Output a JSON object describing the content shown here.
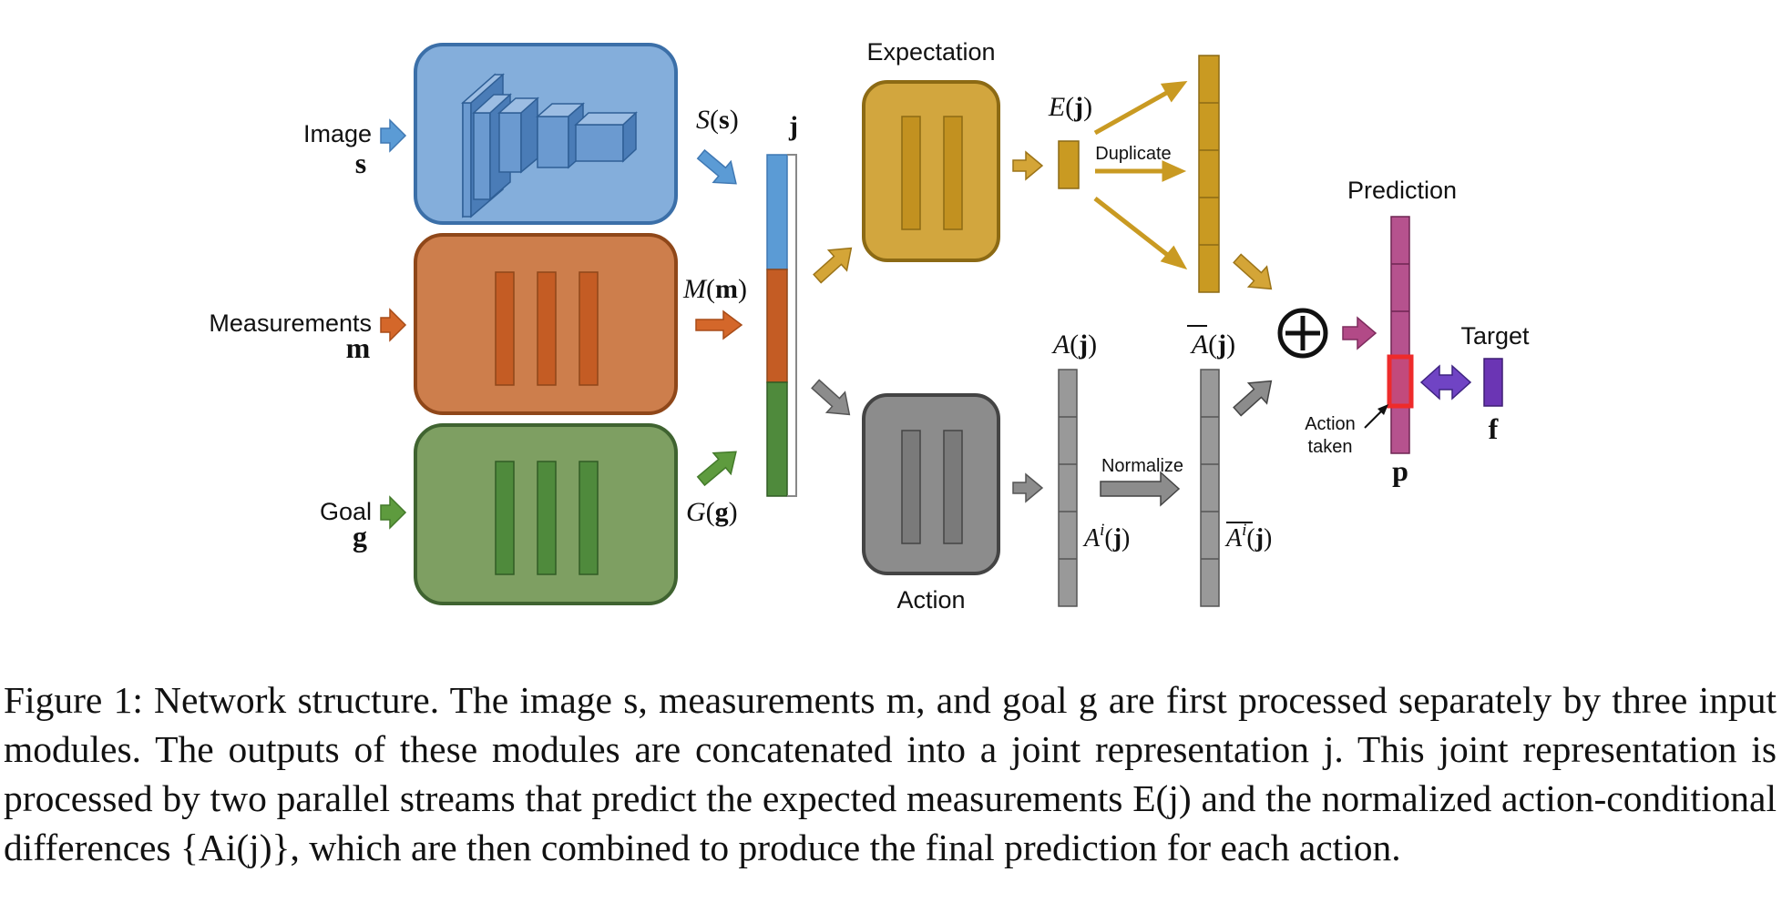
{
  "inputs": {
    "image": {
      "label": "Image",
      "symbol": "s"
    },
    "measurements": {
      "label": "Measurements",
      "symbol": "m"
    },
    "goal": {
      "label": "Goal",
      "symbol": "g"
    }
  },
  "module_outputs": {
    "image": {
      "func": "S",
      "arg": "s"
    },
    "measurements": {
      "func": "M",
      "arg": "m"
    },
    "goal": {
      "func": "G",
      "arg": "g"
    }
  },
  "joint": {
    "symbol": "j"
  },
  "streams": {
    "expectation": {
      "title": "Expectation",
      "output": "E(j)",
      "duplicate_label": "Duplicate"
    },
    "action": {
      "title": "Action",
      "output": "A(j)",
      "element": "Ai(j)",
      "normalize_label": "Normalize",
      "normalized_output": "A(j)",
      "normalized_element": "Ai(j)"
    }
  },
  "combine": {
    "symbol": "⊕"
  },
  "prediction": {
    "title": "Prediction",
    "symbol": "p",
    "action_taken_line1": "Action",
    "action_taken_line2": "taken"
  },
  "target": {
    "title": "Target",
    "symbol": "f"
  },
  "caption": {
    "label": "Figure 1:",
    "text": "Network structure. The image s, measurements m, and goal g are first processed separately by three input modules. The outputs of these modules are concatenated into a joint representation j. This joint representation is processed by two parallel streams that predict the expected measurements E(j) and the normalized action-conditional differences {Ai(j)}, which are then combined to produce the final prediction for each action."
  },
  "colors": {
    "image": "#84aedb",
    "image_dark": "#5b8cc6",
    "measurements": "#cd7e4c",
    "measurements_dark": "#c45c24",
    "goal": "#7e9f62",
    "goal_dark": "#4f8a3c",
    "expectation": "#d2a63e",
    "action": "#8c8c8c",
    "prediction": "#b6528e",
    "target": "#6b35b4",
    "highlight": "#ee2b2b"
  }
}
